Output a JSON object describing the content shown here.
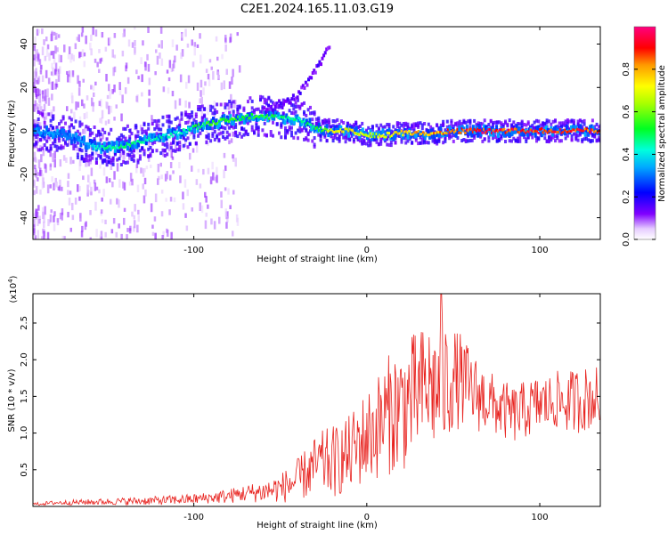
{
  "figure": {
    "title": "C2E1.2024.165.11.03.G19"
  },
  "chart_data": [
    {
      "type": "heatmap",
      "title": "C2E1.2024.165.11.03.G19",
      "xlabel": "Height of straight line (km)",
      "ylabel": "Frequency (Hz)",
      "xlim": [
        -193,
        135
      ],
      "ylim": [
        -50,
        48
      ],
      "xticks": [
        -100,
        0,
        100
      ],
      "xtick_labels": [
        "-100",
        "0",
        "100"
      ],
      "yticks": [
        -40,
        -20,
        0,
        20,
        40
      ],
      "ytick_labels": [
        "-40",
        "-20",
        "0",
        "20",
        "40"
      ],
      "colorbar": {
        "label": "Normalized spectral amplitude",
        "range": [
          0,
          1
        ],
        "ticks": [
          0.0,
          0.2,
          0.4,
          0.6,
          0.8
        ],
        "tick_labels": [
          "0.0",
          "0.2",
          "0.4",
          "0.6",
          "0.8"
        ],
        "colormap": "rainbow (white-violet-blue-cyan-green-yellow-orange-red-magenta)"
      },
      "ridge": {
        "description": "Dominant frequency band of the signal vs height",
        "height_km": [
          -190,
          -170,
          -155,
          -140,
          -125,
          -110,
          -95,
          -80,
          -65,
          -50,
          -38,
          -30,
          -20,
          -10,
          0,
          10,
          20,
          30,
          40,
          50,
          60,
          70,
          80,
          90,
          100,
          110,
          120,
          130
        ],
        "center_freq_hz": [
          0,
          -3,
          -8,
          -7,
          -4,
          -1,
          3,
          5,
          7,
          6,
          5,
          1,
          0,
          0,
          -2,
          -2,
          -1,
          -1,
          -1,
          0,
          0,
          0,
          0,
          0,
          0,
          0,
          0,
          0
        ],
        "amplitude": [
          0.35,
          0.3,
          0.45,
          0.5,
          0.45,
          0.45,
          0.55,
          0.6,
          0.55,
          0.5,
          0.45,
          0.55,
          0.75,
          0.75,
          0.7,
          0.7,
          0.8,
          0.85,
          0.85,
          0.9,
          0.95,
          0.95,
          0.95,
          0.95,
          0.95,
          0.95,
          0.95,
          0.9
        ]
      },
      "upper_branch": {
        "height_km": [
          -60,
          -50,
          -45,
          -40,
          -35,
          -30,
          -26,
          -22
        ],
        "freq_hz": [
          10,
          12,
          14,
          17,
          22,
          28,
          33,
          40
        ]
      }
    },
    {
      "type": "line",
      "xlabel": "Height of straight line (km)",
      "ylabel": "SNR (10 * v/v)",
      "scale_label": "(x10^4)",
      "xlim": [
        -193,
        135
      ],
      "ylim": [
        0,
        2.9
      ],
      "xticks": [
        -100,
        0,
        100
      ],
      "xtick_labels": [
        "-100",
        "0",
        "100"
      ],
      "yticks": [
        0.5,
        1.0,
        1.5,
        2.0,
        2.5
      ],
      "ytick_labels": [
        "0.5",
        "1.0",
        "1.5",
        "2.0",
        "2.5"
      ],
      "series": [
        {
          "color": "#e8231f",
          "x": [
            -193,
            -180,
            -160,
            -140,
            -120,
            -100,
            -90,
            -80,
            -70,
            -60,
            -50,
            -40,
            -35,
            -30,
            -25,
            -20,
            -15,
            -10,
            -5,
            0,
            5,
            10,
            15,
            20,
            25,
            30,
            35,
            40,
            45,
            50,
            55,
            60,
            65,
            70,
            75,
            80,
            85,
            90,
            95,
            100,
            105,
            110,
            115,
            120,
            125,
            130,
            135
          ],
          "y": [
            0.03,
            0.05,
            0.06,
            0.07,
            0.08,
            0.1,
            0.12,
            0.14,
            0.18,
            0.2,
            0.25,
            0.35,
            0.45,
            0.55,
            0.6,
            0.6,
            0.65,
            0.7,
            0.85,
            0.95,
            1.05,
            1.2,
            1.3,
            1.35,
            1.45,
            1.55,
            1.65,
            1.6,
            1.65,
            1.75,
            1.7,
            1.6,
            1.5,
            1.45,
            1.35,
            1.3,
            1.25,
            1.3,
            1.35,
            1.4,
            1.4,
            1.45,
            1.4,
            1.45,
            1.45,
            1.5,
            1.45
          ],
          "spread": [
            0.02,
            0.03,
            0.04,
            0.05,
            0.06,
            0.07,
            0.08,
            0.1,
            0.12,
            0.15,
            0.2,
            0.3,
            0.35,
            0.4,
            0.45,
            0.5,
            0.5,
            0.55,
            0.6,
            0.65,
            0.7,
            0.8,
            0.85,
            0.9,
            0.9,
            0.85,
            0.9,
            0.85,
            0.9,
            0.7,
            0.65,
            0.55,
            0.5,
            0.45,
            0.4,
            0.4,
            0.4,
            0.4,
            0.4,
            0.4,
            0.4,
            0.4,
            0.4,
            0.45,
            0.45,
            0.45,
            0.45
          ],
          "peak": {
            "x": 43,
            "y": 2.9
          }
        }
      ]
    }
  ]
}
